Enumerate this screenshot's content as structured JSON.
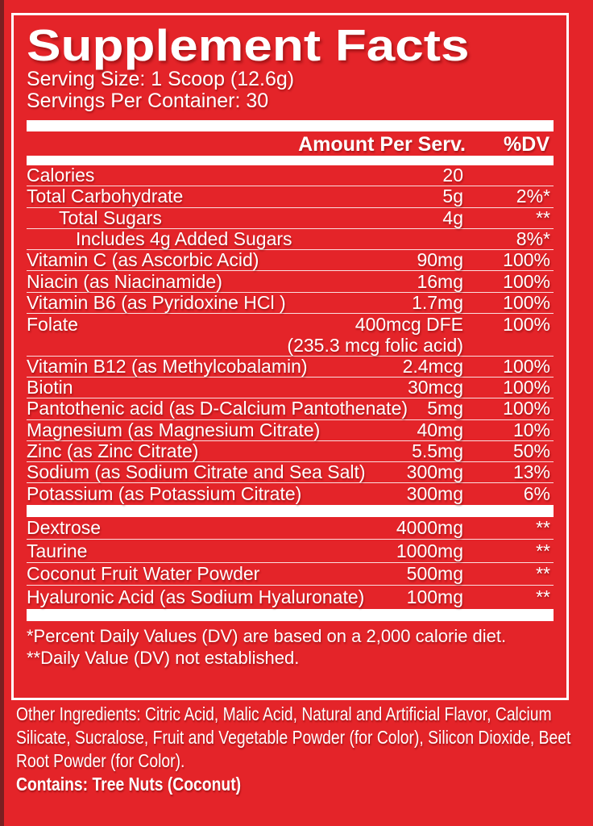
{
  "colors": {
    "background": "#e42429",
    "ink": "#ffffff"
  },
  "header": {
    "title": "Supplement Facts",
    "serving_size": "Serving Size: 1 Scoop (12.6g)",
    "servings_per_container": "Servings Per Container: 30"
  },
  "table": {
    "col_amount": "Amount Per Serv.",
    "col_dv": "%DV",
    "main_rows": [
      {
        "name": "Calories",
        "amount": "20",
        "dv": "",
        "indent": 0,
        "divider": true
      },
      {
        "name": "Total Carbohydrate",
        "amount": "5g",
        "dv": "2%*",
        "indent": 0,
        "divider": true
      },
      {
        "name": "Total Sugars",
        "amount": "4g",
        "dv": "**",
        "indent": 1,
        "divider": true
      },
      {
        "name": "Includes 4g Added Sugars",
        "amount": "",
        "dv": "8%*",
        "indent": 2,
        "divider": true
      },
      {
        "name": "Vitamin C (as Ascorbic Acid)",
        "amount": "90mg",
        "dv": "100%",
        "indent": 0,
        "divider": true
      },
      {
        "name": "Niacin (as Niacinamide)",
        "amount": "16mg",
        "dv": "100%",
        "indent": 0,
        "divider": true
      },
      {
        "name": "Vitamin B6 (as Pyridoxine HCl )",
        "amount": "1.7mg",
        "dv": "100%",
        "indent": 0,
        "divider": true
      },
      {
        "name": "Folate",
        "amount": "400mcg DFE",
        "dv": "100%",
        "indent": 0,
        "divider": false
      },
      {
        "name": "",
        "amount": "(235.3 mcg folic acid)",
        "dv": "",
        "indent": 0,
        "divider": true
      },
      {
        "name": "Vitamin B12 (as Methylcobalamin)",
        "amount": "2.4mcg",
        "dv": "100%",
        "indent": 0,
        "divider": true
      },
      {
        "name": "Biotin",
        "amount": "30mcg",
        "dv": "100%",
        "indent": 0,
        "divider": true
      },
      {
        "name": "Pantothenic acid (as D-Calcium Pantothenate)",
        "amount": "5mg",
        "dv": "100%",
        "indent": 0,
        "divider": true
      },
      {
        "name": "Magnesium (as Magnesium Citrate)",
        "amount": "40mg",
        "dv": "10%",
        "indent": 0,
        "divider": true
      },
      {
        "name": "Zinc (as Zinc Citrate)",
        "amount": "5.5mg",
        "dv": "50%",
        "indent": 0,
        "divider": true
      },
      {
        "name": "Sodium (as Sodium Citrate and Sea Salt)",
        "amount": "300mg",
        "dv": "13%",
        "indent": 0,
        "divider": true
      },
      {
        "name": "Potassium (as Potassium Citrate)",
        "amount": "300mg",
        "dv": "6%",
        "indent": 0,
        "divider": false
      }
    ],
    "extra_rows": [
      {
        "name": "Dextrose",
        "amount": "4000mg",
        "dv": "**",
        "indent": 0,
        "divider": true
      },
      {
        "name": "Taurine",
        "amount": "1000mg",
        "dv": "**",
        "indent": 0,
        "divider": true
      },
      {
        "name": "Coconut Fruit Water Powder",
        "amount": "500mg",
        "dv": "**",
        "indent": 0,
        "divider": true
      },
      {
        "name": "Hyaluronic Acid (as Sodium Hyaluronate)",
        "amount": "100mg",
        "dv": "**",
        "indent": 0,
        "divider": false
      }
    ]
  },
  "footnotes": [
    "*Percent Daily Values (DV) are based on a 2,000 calorie diet.",
    "**Daily Value (DV) not established."
  ],
  "other_ingredients": "Other Ingredients: Citric Acid, Malic Acid, Natural and Artificial Flavor, Calcium Silicate, Sucralose, Fruit and Vegetable Powder (for Color), Silicon Dioxide, Beet Root Powder (for Color).",
  "contains": "Contains: Tree Nuts (Coconut)"
}
